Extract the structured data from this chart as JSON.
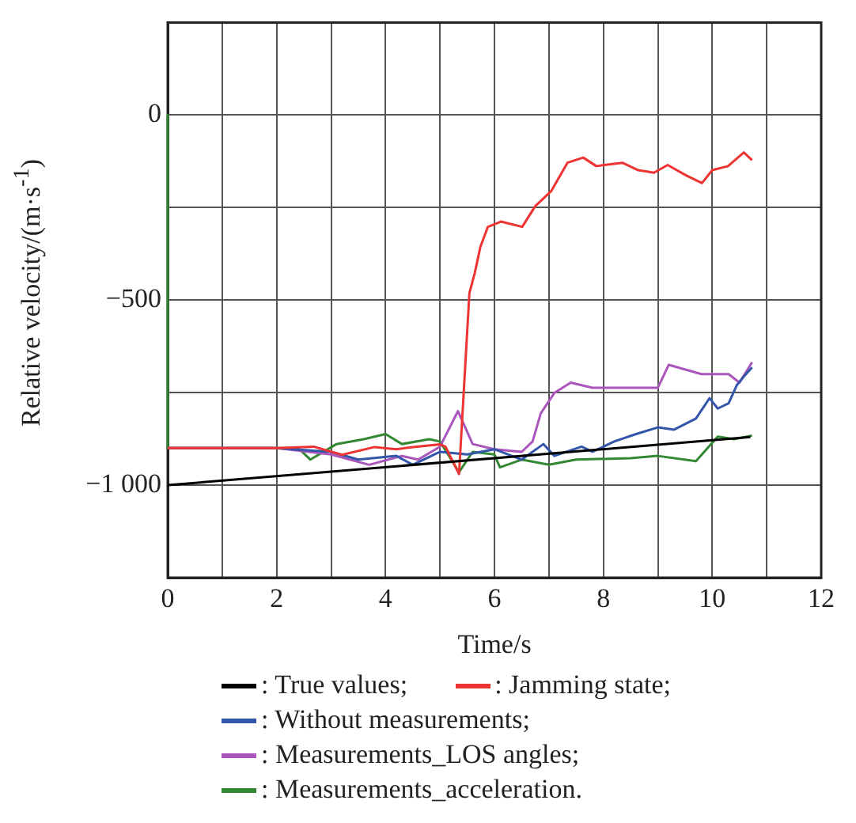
{
  "chart_data": {
    "type": "line",
    "xlabel": "Time/s",
    "ylabel": "Relative velocity/(m·s$^{-1}$)",
    "xlim": [
      0,
      12
    ],
    "ylim": [
      -1250,
      250
    ],
    "xticks": [
      0,
      {
        "value": 1,
        "label": null
      },
      2,
      {
        "value": 3,
        "label": null
      },
      4,
      {
        "value": 5,
        "label": null
      },
      6,
      {
        "value": 7,
        "label": null
      },
      8,
      {
        "value": 9,
        "label": null
      },
      10,
      {
        "value": 11,
        "label": null
      },
      12
    ],
    "yticks": [
      {
        "value": -1250,
        "label": null
      },
      {
        "value": -1000,
        "label": "−1 000"
      },
      {
        "value": -750,
        "label": null
      },
      {
        "value": -500,
        "label": "−500"
      },
      {
        "value": -250,
        "label": null
      },
      0,
      {
        "value": 250,
        "label": null
      }
    ],
    "grid": true,
    "legend": "bottom",
    "marker": "none",
    "line_style": "solid",
    "series": [
      {
        "name": ": True values;",
        "color": "#000000",
        "x": [
          0,
          10.7
        ],
        "values": [
          -1000,
          -870
        ]
      },
      {
        "name": ": Jamming state;",
        "color": "#ee3333",
        "x": [
          0,
          2,
          2.68,
          3.2,
          3.8,
          4.2,
          4.5,
          5.0,
          5.1,
          5.35,
          5.54,
          5.64,
          5.74,
          5.88,
          6.12,
          6.51,
          6.75,
          7.04,
          7.34,
          7.63,
          7.87,
          8.35,
          8.64,
          8.93,
          9.18,
          9.52,
          9.81,
          10.0,
          10.29,
          10.58,
          10.73
        ],
        "values": [
          -900,
          -900,
          -896,
          -918,
          -897,
          -903,
          -897,
          -890,
          -896,
          -970,
          -481,
          -426,
          -357,
          -302,
          -288,
          -302,
          -246,
          -206,
          -129,
          -115,
          -138,
          -129,
          -149,
          -156,
          -135,
          -163,
          -184,
          -149,
          -138,
          -101,
          -122
        ]
      },
      {
        "name": ": Without measurements;",
        "color": "#3355aa",
        "x": [
          0,
          2,
          3,
          3.5,
          4.2,
          4.5,
          5.0,
          5.5,
          6.0,
          6.5,
          6.9,
          7.1,
          7.6,
          7.8,
          8.2,
          8.6,
          9.0,
          9.3,
          9.7,
          9.95,
          10.1,
          10.3,
          10.45,
          10.6,
          10.73
        ],
        "values": [
          -900,
          -900,
          -910,
          -931,
          -921,
          -945,
          -910,
          -917,
          -903,
          -931,
          -889,
          -921,
          -896,
          -910,
          -882,
          -862,
          -844,
          -850,
          -820,
          -765,
          -793,
          -779,
          -730,
          -703,
          -682
        ]
      },
      {
        "name": ": Measurements_LOS angles;",
        "color": "#aa55bb",
        "x": [
          0,
          2,
          3,
          3.7,
          4.3,
          4.6,
          5.0,
          5.33,
          5.6,
          6.0,
          6.5,
          6.7,
          6.85,
          7.1,
          7.4,
          7.8,
          8.4,
          9.0,
          9.2,
          9.8,
          10.3,
          10.5,
          10.73
        ],
        "values": [
          -900,
          -900,
          -917,
          -945,
          -921,
          -931,
          -896,
          -800,
          -889,
          -903,
          -910,
          -882,
          -806,
          -751,
          -723,
          -737,
          -737,
          -737,
          -675,
          -700,
          -700,
          -723,
          -668
        ]
      },
      {
        "name": ": Measurements_acceleration.",
        "color": "#338833",
        "x": [
          0,
          0,
          2.4,
          2.62,
          3.1,
          3.6,
          4.0,
          4.3,
          4.8,
          5.0,
          5.35,
          5.6,
          6.0,
          6.1,
          6.5,
          7.0,
          7.5,
          8.5,
          9.0,
          9.7,
          10.1,
          10.4,
          10.73
        ],
        "values": [
          0,
          -900,
          -900,
          -931,
          -889,
          -876,
          -862,
          -889,
          -876,
          -882,
          -965,
          -910,
          -917,
          -952,
          -931,
          -945,
          -931,
          -927,
          -921,
          -935,
          -869,
          -876,
          -866
        ]
      }
    ]
  }
}
